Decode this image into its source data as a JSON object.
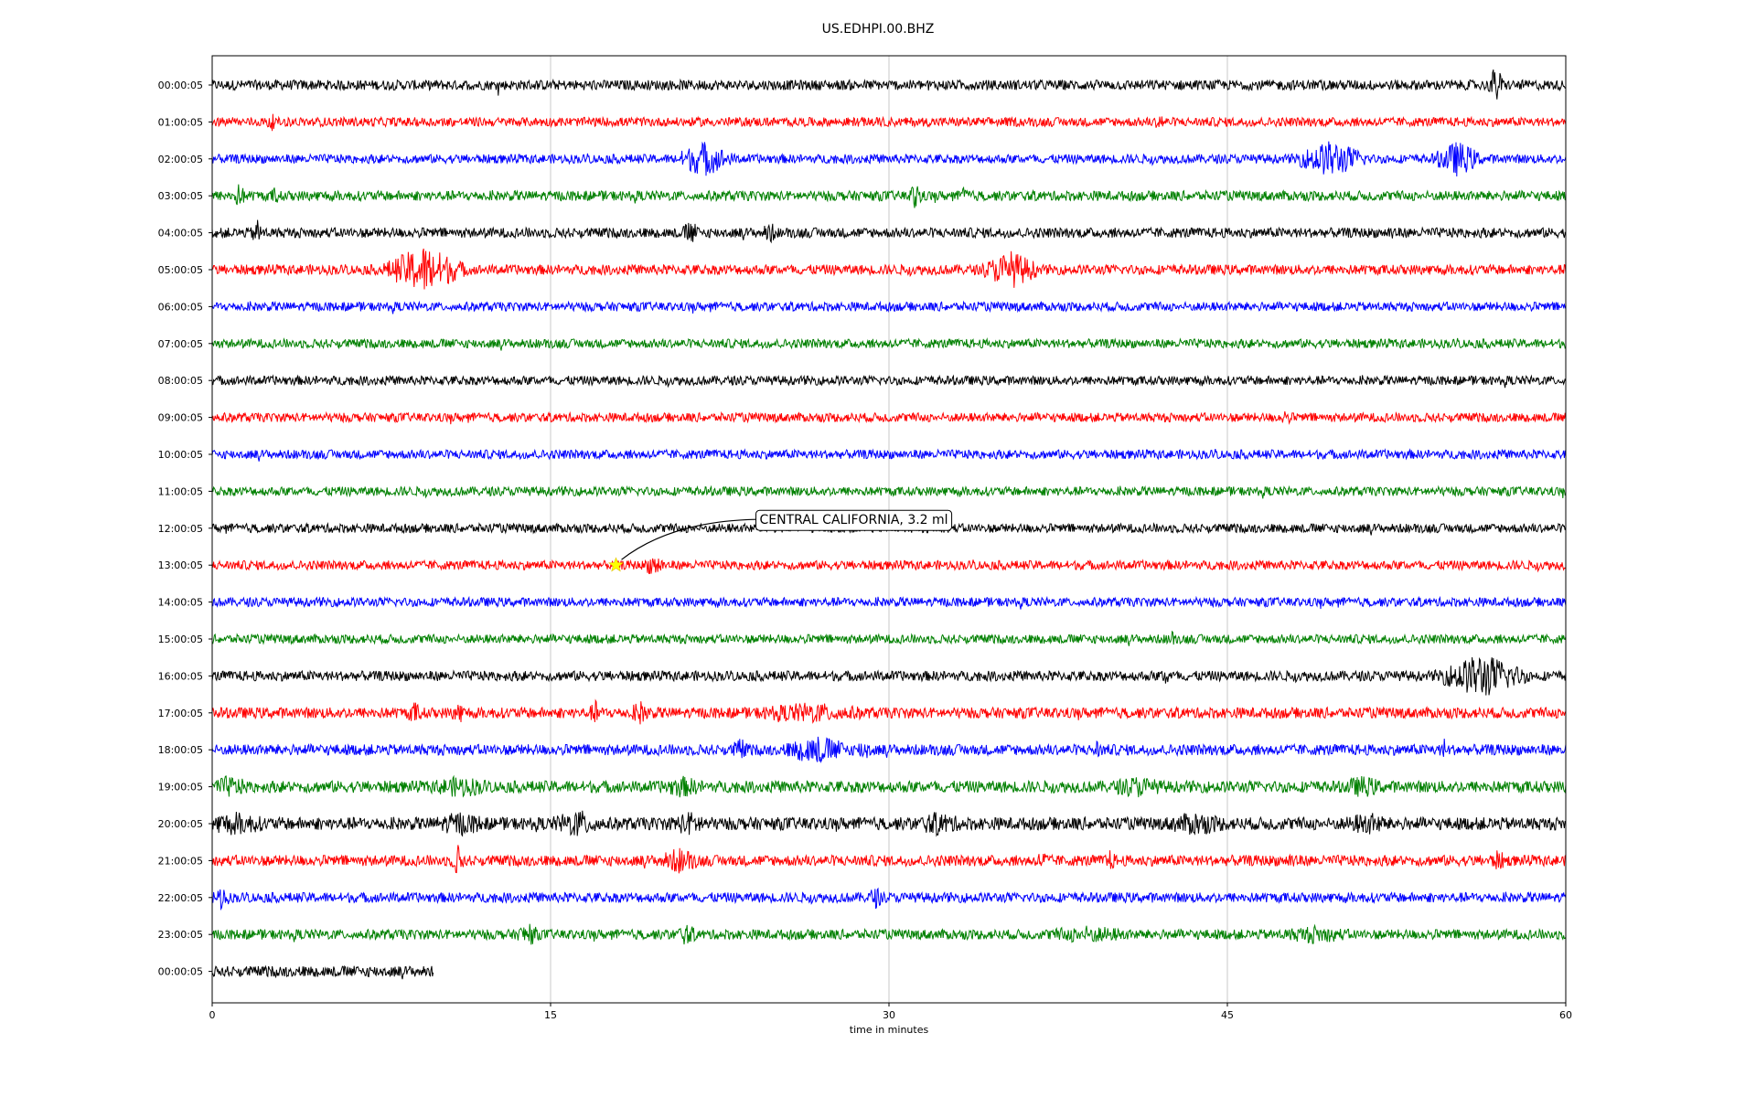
{
  "chart_data": {
    "type": "line",
    "title": "US.EDHPI.00.BHZ",
    "xlabel": "time in minutes",
    "ylabel": "",
    "xlim": [
      0,
      60
    ],
    "x_ticks": [
      0,
      15,
      30,
      45,
      60
    ],
    "grid": "vertical",
    "colors": [
      "#000000",
      "#ff0000",
      "#0000ff",
      "#008000"
    ],
    "rows": [
      {
        "label": "00:00:05",
        "color": "#000000",
        "end_minute": 60,
        "noise": 0.55,
        "bursts": [
          {
            "t": 56.9,
            "amp": 1.8,
            "dur": 0.35
          }
        ]
      },
      {
        "label": "01:00:05",
        "color": "#ff0000",
        "end_minute": 60,
        "noise": 0.5,
        "bursts": [
          {
            "t": 2.6,
            "amp": 0.7,
            "dur": 0.2
          },
          {
            "t": 42.0,
            "amp": 0.8,
            "dur": 0.2
          }
        ]
      },
      {
        "label": "02:00:05",
        "color": "#0000ff",
        "end_minute": 60,
        "noise": 0.5,
        "bursts": [
          {
            "t": 21.8,
            "amp": 1.5,
            "dur": 1.4
          },
          {
            "t": 49.6,
            "amp": 1.6,
            "dur": 1.8
          },
          {
            "t": 55.2,
            "amp": 1.5,
            "dur": 1.2
          }
        ]
      },
      {
        "label": "03:00:05",
        "color": "#008000",
        "end_minute": 60,
        "noise": 0.55,
        "bursts": [
          {
            "t": 1.2,
            "amp": 0.9,
            "dur": 0.3
          },
          {
            "t": 2.8,
            "amp": 0.7,
            "dur": 0.2
          },
          {
            "t": 31.2,
            "amp": 1.4,
            "dur": 0.3
          },
          {
            "t": 33.4,
            "amp": 0.6,
            "dur": 0.3
          }
        ]
      },
      {
        "label": "04:00:05",
        "color": "#000000",
        "end_minute": 60,
        "noise": 0.55,
        "bursts": [
          {
            "t": 2.0,
            "amp": 1.0,
            "dur": 0.3
          },
          {
            "t": 21.2,
            "amp": 0.9,
            "dur": 0.4
          },
          {
            "t": 24.7,
            "amp": 0.9,
            "dur": 0.3
          },
          {
            "t": 52.3,
            "amp": 0.6,
            "dur": 0.2
          }
        ]
      },
      {
        "label": "05:00:05",
        "color": "#ff0000",
        "end_minute": 60,
        "noise": 0.55,
        "bursts": [
          {
            "t": 9.4,
            "amp": 2.2,
            "dur": 2.0
          },
          {
            "t": 35.4,
            "amp": 1.6,
            "dur": 1.4
          }
        ]
      },
      {
        "label": "06:00:05",
        "color": "#0000ff",
        "end_minute": 60,
        "noise": 0.5,
        "bursts": []
      },
      {
        "label": "07:00:05",
        "color": "#008000",
        "end_minute": 60,
        "noise": 0.5,
        "bursts": []
      },
      {
        "label": "08:00:05",
        "color": "#000000",
        "end_minute": 60,
        "noise": 0.5,
        "bursts": []
      },
      {
        "label": "09:00:05",
        "color": "#ff0000",
        "end_minute": 60,
        "noise": 0.5,
        "bursts": [
          {
            "t": 47.6,
            "amp": 0.6,
            "dur": 0.2
          }
        ]
      },
      {
        "label": "10:00:05",
        "color": "#0000ff",
        "end_minute": 60,
        "noise": 0.5,
        "bursts": []
      },
      {
        "label": "11:00:05",
        "color": "#008000",
        "end_minute": 60,
        "noise": 0.5,
        "bursts": []
      },
      {
        "label": "12:00:05",
        "color": "#000000",
        "end_minute": 60,
        "noise": 0.5,
        "bursts": []
      },
      {
        "label": "13:00:05",
        "color": "#ff0000",
        "end_minute": 60,
        "noise": 0.5,
        "bursts": [
          {
            "t": 19.6,
            "amp": 0.9,
            "dur": 0.5
          }
        ]
      },
      {
        "label": "14:00:05",
        "color": "#0000ff",
        "end_minute": 60,
        "noise": 0.5,
        "bursts": []
      },
      {
        "label": "15:00:05",
        "color": "#008000",
        "end_minute": 60,
        "noise": 0.5,
        "bursts": [
          {
            "t": 42.5,
            "amp": 0.6,
            "dur": 0.2
          }
        ]
      },
      {
        "label": "16:00:05",
        "color": "#000000",
        "end_minute": 60,
        "noise": 0.55,
        "bursts": [
          {
            "t": 56.3,
            "amp": 2.0,
            "dur": 2.2
          },
          {
            "t": 42.3,
            "amp": 0.6,
            "dur": 0.3
          }
        ]
      },
      {
        "label": "17:00:05",
        "color": "#ff0000",
        "end_minute": 60,
        "noise": 0.6,
        "bursts": [
          {
            "t": 9.0,
            "amp": 0.7,
            "dur": 0.4
          },
          {
            "t": 10.9,
            "amp": 0.8,
            "dur": 0.3
          },
          {
            "t": 17.0,
            "amp": 0.8,
            "dur": 0.3
          },
          {
            "t": 19.0,
            "amp": 0.8,
            "dur": 0.5
          },
          {
            "t": 26.5,
            "amp": 0.6,
            "dur": 2.6
          }
        ]
      },
      {
        "label": "18:00:05",
        "color": "#0000ff",
        "end_minute": 60,
        "noise": 0.6,
        "bursts": [
          {
            "t": 23.4,
            "amp": 0.8,
            "dur": 0.4
          },
          {
            "t": 26.8,
            "amp": 1.1,
            "dur": 1.6
          },
          {
            "t": 28.9,
            "amp": 0.7,
            "dur": 0.4
          },
          {
            "t": 39.2,
            "amp": 0.6,
            "dur": 0.3
          },
          {
            "t": 54.6,
            "amp": 0.8,
            "dur": 0.2
          }
        ]
      },
      {
        "label": "19:00:05",
        "color": "#008000",
        "end_minute": 60,
        "noise": 0.65,
        "bursts": [
          {
            "t": 0.7,
            "amp": 0.6,
            "dur": 1.0
          },
          {
            "t": 11.0,
            "amp": 0.6,
            "dur": 1.4
          },
          {
            "t": 20.8,
            "amp": 0.6,
            "dur": 1.0
          },
          {
            "t": 41.0,
            "amp": 0.6,
            "dur": 1.2
          },
          {
            "t": 51.0,
            "amp": 0.6,
            "dur": 1.0
          }
        ]
      },
      {
        "label": "20:00:05",
        "color": "#000000",
        "end_minute": 60,
        "noise": 0.7,
        "bursts": [
          {
            "t": 1.0,
            "amp": 0.7,
            "dur": 1.4
          },
          {
            "t": 11.0,
            "amp": 0.7,
            "dur": 1.2
          },
          {
            "t": 16.2,
            "amp": 0.9,
            "dur": 1.2
          },
          {
            "t": 21.2,
            "amp": 0.7,
            "dur": 1.0
          },
          {
            "t": 32.2,
            "amp": 0.7,
            "dur": 1.0
          },
          {
            "t": 43.6,
            "amp": 0.7,
            "dur": 1.4
          },
          {
            "t": 51.2,
            "amp": 0.7,
            "dur": 1.0
          }
        ]
      },
      {
        "label": "21:00:05",
        "color": "#ff0000",
        "end_minute": 60,
        "noise": 0.6,
        "bursts": [
          {
            "t": 10.9,
            "amp": 1.3,
            "dur": 0.3
          },
          {
            "t": 20.7,
            "amp": 0.9,
            "dur": 1.0
          },
          {
            "t": 36.8,
            "amp": 0.6,
            "dur": 0.3
          },
          {
            "t": 39.8,
            "amp": 0.6,
            "dur": 0.3
          },
          {
            "t": 47.9,
            "amp": 0.6,
            "dur": 0.3
          },
          {
            "t": 57.0,
            "amp": 0.6,
            "dur": 0.4
          }
        ]
      },
      {
        "label": "22:00:05",
        "color": "#0000ff",
        "end_minute": 60,
        "noise": 0.55,
        "bursts": [
          {
            "t": 0.4,
            "amp": 0.9,
            "dur": 0.4
          },
          {
            "t": 29.4,
            "amp": 0.7,
            "dur": 0.4
          }
        ]
      },
      {
        "label": "23:00:05",
        "color": "#008000",
        "end_minute": 60,
        "noise": 0.55,
        "bursts": [
          {
            "t": 14.0,
            "amp": 0.9,
            "dur": 0.5
          },
          {
            "t": 21.0,
            "amp": 0.7,
            "dur": 0.5
          },
          {
            "t": 38.8,
            "amp": 0.5,
            "dur": 2.0
          },
          {
            "t": 48.9,
            "amp": 0.5,
            "dur": 1.6
          }
        ]
      },
      {
        "label": "00:00:05",
        "color": "#000000",
        "end_minute": 9.8,
        "noise": 0.6,
        "bursts": []
      }
    ],
    "annotation": {
      "text": "CENTRAL CALIFORNIA, 3.2 ml",
      "row_label": "13:00:05",
      "minute": 17.9,
      "marker": "star",
      "marker_color": "#ffff00"
    }
  }
}
